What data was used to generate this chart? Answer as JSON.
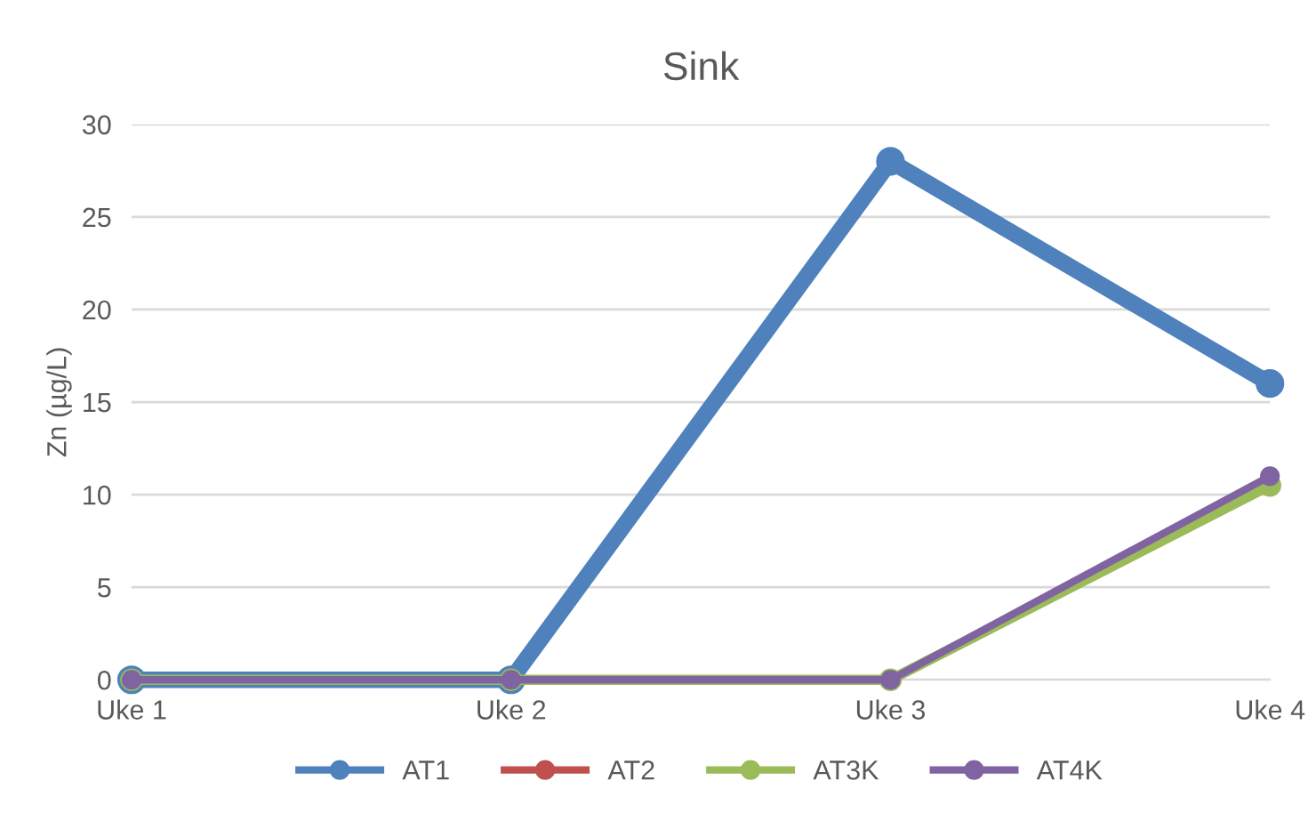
{
  "chart_data": {
    "type": "line",
    "title": "Sink",
    "ylabel": "Zn (µg/L)",
    "categories": [
      "Uke 1",
      "Uke 2",
      "Uke 3",
      "Uke 4"
    ],
    "series": [
      {
        "name": "AT1",
        "color": "#4f81bd",
        "values": [
          0,
          0,
          28,
          16
        ]
      },
      {
        "name": "AT2",
        "color": "#c0504d",
        "values": [
          null,
          null,
          null,
          null
        ]
      },
      {
        "name": "AT3K",
        "color": "#9bbb59",
        "values": [
          0,
          0,
          0,
          10.5
        ]
      },
      {
        "name": "AT4K",
        "color": "#8064a2",
        "values": [
          0,
          0,
          0,
          11
        ]
      }
    ],
    "ylim": [
      0,
      30
    ],
    "yticks": [
      0,
      5,
      10,
      15,
      20,
      25,
      30
    ],
    "grid": "y",
    "legend": "bottom",
    "marker": "circle",
    "line_style": "solid"
  }
}
